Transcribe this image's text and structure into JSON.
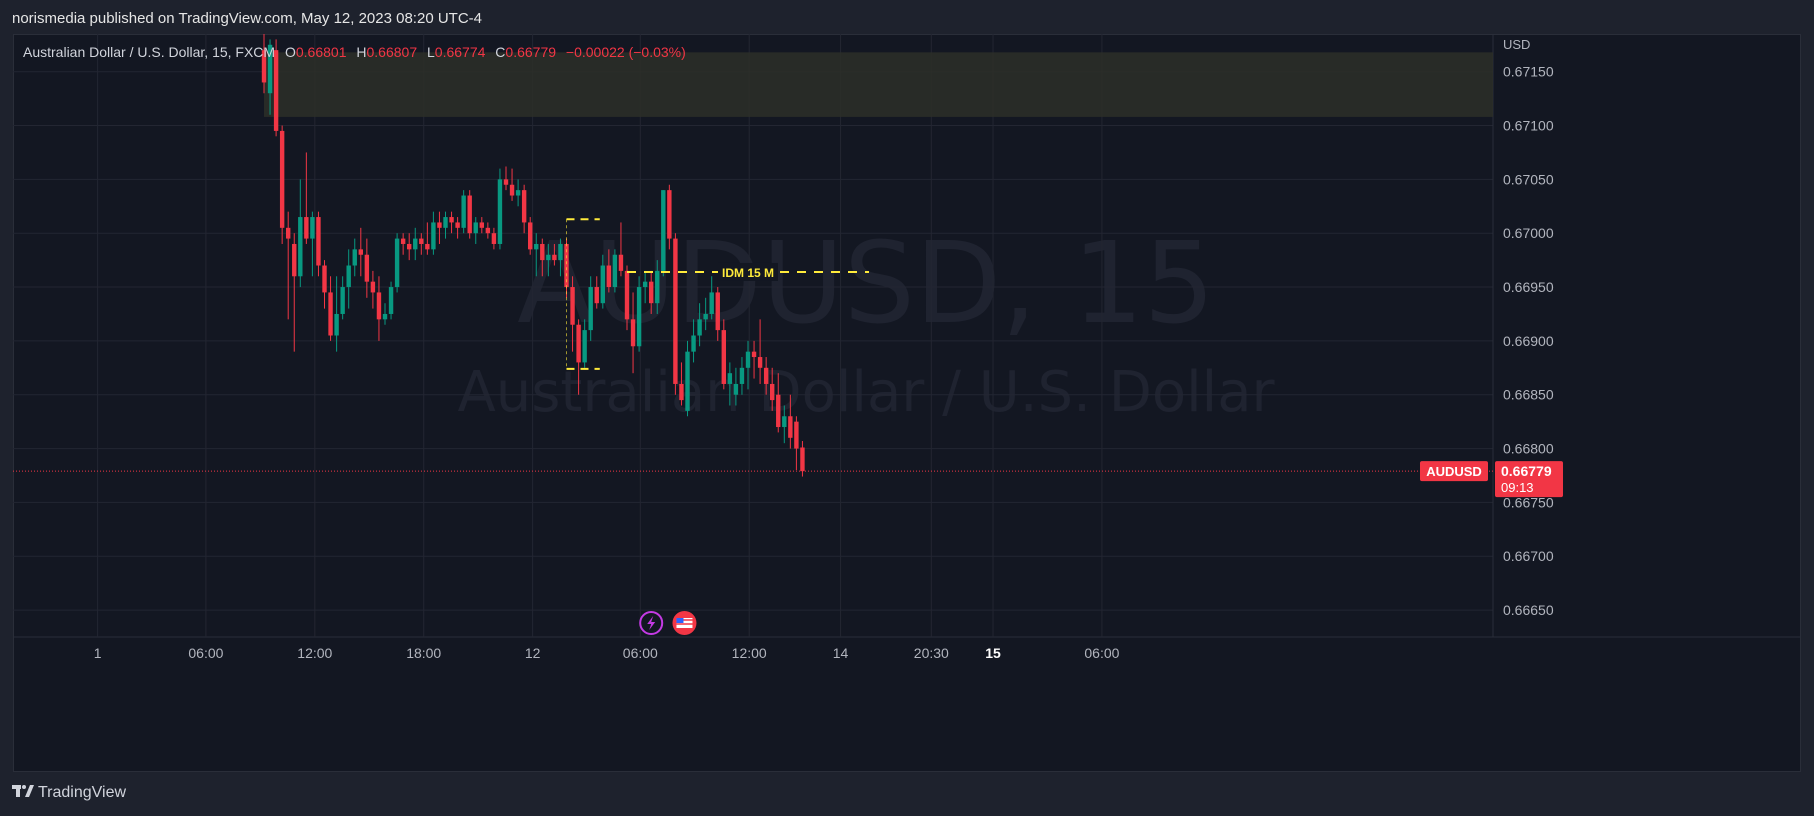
{
  "header": {
    "publisher_line": "norismedia published on TradingView.com, May 12, 2023 08:20 UTC-4"
  },
  "legend": {
    "symbol": "Australian Dollar / U.S. Dollar, 15, FXCM",
    "open_label": "O",
    "open": "0.66801",
    "high_label": "H",
    "high": "0.66807",
    "low_label": "L",
    "low": "0.66774",
    "close_label": "C",
    "close": "0.66779",
    "change": "−0.00022 (−0.03%)"
  },
  "watermark": {
    "line1": "AUDUSD, 15",
    "line2": "Australian Dollar / U.S. Dollar"
  },
  "footer": {
    "brand": "TradingView"
  },
  "colors": {
    "up": "#089981",
    "down": "#f23645",
    "background": "#131722",
    "grid": "#232632",
    "annotation": "#ffeb3b",
    "zone": "#2d2f28"
  },
  "icons": [
    "tradingview-logo-icon",
    "lightning-event-icon",
    "us-flag-event-icon"
  ],
  "chart_data": {
    "type": "candlestick",
    "symbol": "AUDUSD",
    "currency_label": "USD",
    "ylim": [
      0.66625,
      0.67185
    ],
    "y_ticks": [
      "0.67150",
      "0.67100",
      "0.67050",
      "0.67000",
      "0.66950",
      "0.66900",
      "0.66850",
      "0.66800",
      "0.66750",
      "0.66700",
      "0.66650"
    ],
    "x_ticks": [
      {
        "label": "1",
        "index": -27.5
      },
      {
        "label": "06:00",
        "index": -9.6
      },
      {
        "label": "12:00",
        "index": 8.4
      },
      {
        "label": "18:00",
        "index": 26.4
      },
      {
        "label": "12",
        "index": 44.4
      },
      {
        "label": "06:00",
        "index": 62.2
      },
      {
        "label": "12:00",
        "index": 80.2
      },
      {
        "label": "14",
        "index": 95.3
      },
      {
        "label": "20:30",
        "index": 110.3
      },
      {
        "label": "15",
        "index": 120.5,
        "bold": true
      },
      {
        "label": "06:00",
        "index": 138.5
      }
    ],
    "last_price": {
      "symbol": "AUDUSD",
      "price": "0.66779",
      "countdown": "09:13"
    },
    "annotations": [
      {
        "type": "hline_label",
        "text": "IDM 15 M",
        "y": 0.66964,
        "x_start": 60,
        "x_end": 100
      },
      {
        "type": "dashed_box",
        "x_start": 50,
        "x_end": 55.5,
        "y_top": 0.67013,
        "y_bottom": 0.66874
      },
      {
        "type": "zone",
        "y_top": 0.67168,
        "y_bottom": 0.67108,
        "x_start": 0
      }
    ],
    "event_icons": [
      {
        "icon": "lightning-event-icon",
        "index": 64
      },
      {
        "icon": "us-flag-event-icon",
        "index": 69.5
      }
    ],
    "candles": [
      {
        "o": 0.6717,
        "h": 0.67185,
        "l": 0.6713,
        "c": 0.6714
      },
      {
        "o": 0.6713,
        "h": 0.6718,
        "l": 0.6711,
        "c": 0.67175
      },
      {
        "o": 0.6717,
        "h": 0.6718,
        "l": 0.6709,
        "c": 0.67095
      },
      {
        "o": 0.67095,
        "h": 0.671,
        "l": 0.6699,
        "c": 0.67005
      },
      {
        "o": 0.67005,
        "h": 0.6702,
        "l": 0.6692,
        "c": 0.66995
      },
      {
        "o": 0.6699,
        "h": 0.67,
        "l": 0.6689,
        "c": 0.6696
      },
      {
        "o": 0.6696,
        "h": 0.6705,
        "l": 0.6695,
        "c": 0.67015
      },
      {
        "o": 0.67015,
        "h": 0.67075,
        "l": 0.6699,
        "c": 0.66995
      },
      {
        "o": 0.66995,
        "h": 0.6702,
        "l": 0.6696,
        "c": 0.67015
      },
      {
        "o": 0.67015,
        "h": 0.6702,
        "l": 0.6696,
        "c": 0.6697
      },
      {
        "o": 0.6697,
        "h": 0.66975,
        "l": 0.6693,
        "c": 0.66945
      },
      {
        "o": 0.66945,
        "h": 0.6696,
        "l": 0.669,
        "c": 0.66905
      },
      {
        "o": 0.66905,
        "h": 0.6696,
        "l": 0.6689,
        "c": 0.66925
      },
      {
        "o": 0.66925,
        "h": 0.6696,
        "l": 0.6692,
        "c": 0.6695
      },
      {
        "o": 0.6695,
        "h": 0.66985,
        "l": 0.6693,
        "c": 0.6697
      },
      {
        "o": 0.6697,
        "h": 0.66995,
        "l": 0.6696,
        "c": 0.66985
      },
      {
        "o": 0.66985,
        "h": 0.67005,
        "l": 0.6696,
        "c": 0.6698
      },
      {
        "o": 0.6698,
        "h": 0.66995,
        "l": 0.6694,
        "c": 0.66955
      },
      {
        "o": 0.66955,
        "h": 0.66965,
        "l": 0.6693,
        "c": 0.66945
      },
      {
        "o": 0.66945,
        "h": 0.6696,
        "l": 0.669,
        "c": 0.6692
      },
      {
        "o": 0.6692,
        "h": 0.66935,
        "l": 0.66915,
        "c": 0.66925
      },
      {
        "o": 0.66925,
        "h": 0.66955,
        "l": 0.6692,
        "c": 0.6695
      },
      {
        "o": 0.6695,
        "h": 0.67,
        "l": 0.66945,
        "c": 0.66995
      },
      {
        "o": 0.66995,
        "h": 0.67,
        "l": 0.6698,
        "c": 0.6699
      },
      {
        "o": 0.6699,
        "h": 0.67,
        "l": 0.66975,
        "c": 0.66985
      },
      {
        "o": 0.66985,
        "h": 0.67005,
        "l": 0.66975,
        "c": 0.66995
      },
      {
        "o": 0.66995,
        "h": 0.67,
        "l": 0.6698,
        "c": 0.6699
      },
      {
        "o": 0.6699,
        "h": 0.6701,
        "l": 0.6698,
        "c": 0.66985
      },
      {
        "o": 0.66985,
        "h": 0.6702,
        "l": 0.6698,
        "c": 0.6701
      },
      {
        "o": 0.6701,
        "h": 0.6702,
        "l": 0.6699,
        "c": 0.67005
      },
      {
        "o": 0.67005,
        "h": 0.6702,
        "l": 0.66995,
        "c": 0.67015
      },
      {
        "o": 0.67015,
        "h": 0.6702,
        "l": 0.67,
        "c": 0.6701
      },
      {
        "o": 0.6701,
        "h": 0.67015,
        "l": 0.66995,
        "c": 0.67005
      },
      {
        "o": 0.67005,
        "h": 0.6704,
        "l": 0.67,
        "c": 0.67035
      },
      {
        "o": 0.67035,
        "h": 0.6704,
        "l": 0.66995,
        "c": 0.67
      },
      {
        "o": 0.67,
        "h": 0.67015,
        "l": 0.6699,
        "c": 0.6701
      },
      {
        "o": 0.6701,
        "h": 0.67015,
        "l": 0.67,
        "c": 0.67005
      },
      {
        "o": 0.67005,
        "h": 0.6701,
        "l": 0.66995,
        "c": 0.67
      },
      {
        "o": 0.67,
        "h": 0.67005,
        "l": 0.66985,
        "c": 0.6699
      },
      {
        "o": 0.6699,
        "h": 0.6706,
        "l": 0.66985,
        "c": 0.6705
      },
      {
        "o": 0.6705,
        "h": 0.67062,
        "l": 0.6704,
        "c": 0.67045
      },
      {
        "o": 0.67045,
        "h": 0.6706,
        "l": 0.6703,
        "c": 0.67035
      },
      {
        "o": 0.67035,
        "h": 0.6705,
        "l": 0.67025,
        "c": 0.6704
      },
      {
        "o": 0.6704,
        "h": 0.67045,
        "l": 0.67,
        "c": 0.6701
      },
      {
        "o": 0.6701,
        "h": 0.67015,
        "l": 0.6698,
        "c": 0.66985
      },
      {
        "o": 0.66985,
        "h": 0.67,
        "l": 0.6696,
        "c": 0.6699
      },
      {
        "o": 0.6699,
        "h": 0.66995,
        "l": 0.6696,
        "c": 0.66975
      },
      {
        "o": 0.66975,
        "h": 0.6699,
        "l": 0.6696,
        "c": 0.6698
      },
      {
        "o": 0.6698,
        "h": 0.6699,
        "l": 0.6697,
        "c": 0.66975
      },
      {
        "o": 0.66975,
        "h": 0.66995,
        "l": 0.6696,
        "c": 0.6699
      },
      {
        "o": 0.6699,
        "h": 0.66995,
        "l": 0.6694,
        "c": 0.6695
      },
      {
        "o": 0.6695,
        "h": 0.6696,
        "l": 0.6689,
        "c": 0.66915
      },
      {
        "o": 0.66915,
        "h": 0.6692,
        "l": 0.6685,
        "c": 0.6688
      },
      {
        "o": 0.6688,
        "h": 0.6692,
        "l": 0.66875,
        "c": 0.6691
      },
      {
        "o": 0.6691,
        "h": 0.6696,
        "l": 0.669,
        "c": 0.6695
      },
      {
        "o": 0.6695,
        "h": 0.6696,
        "l": 0.6693,
        "c": 0.66935
      },
      {
        "o": 0.66935,
        "h": 0.6698,
        "l": 0.6693,
        "c": 0.6697
      },
      {
        "o": 0.6697,
        "h": 0.66985,
        "l": 0.66945,
        "c": 0.6695
      },
      {
        "o": 0.6695,
        "h": 0.66985,
        "l": 0.66945,
        "c": 0.6698
      },
      {
        "o": 0.6698,
        "h": 0.6701,
        "l": 0.6696,
        "c": 0.66965
      },
      {
        "o": 0.66965,
        "h": 0.6697,
        "l": 0.6691,
        "c": 0.6692
      },
      {
        "o": 0.6692,
        "h": 0.66945,
        "l": 0.6687,
        "c": 0.66895
      },
      {
        "o": 0.66895,
        "h": 0.6696,
        "l": 0.6689,
        "c": 0.6695
      },
      {
        "o": 0.6695,
        "h": 0.66965,
        "l": 0.66935,
        "c": 0.66955
      },
      {
        "o": 0.66955,
        "h": 0.66965,
        "l": 0.66925,
        "c": 0.66935
      },
      {
        "o": 0.66935,
        "h": 0.66975,
        "l": 0.66925,
        "c": 0.66965
      },
      {
        "o": 0.66965,
        "h": 0.6704,
        "l": 0.6696,
        "c": 0.6704
      },
      {
        "o": 0.6704,
        "h": 0.67045,
        "l": 0.66985,
        "c": 0.66995
      },
      {
        "o": 0.66995,
        "h": 0.67,
        "l": 0.6685,
        "c": 0.6686
      },
      {
        "o": 0.6686,
        "h": 0.6688,
        "l": 0.6684,
        "c": 0.66845
      },
      {
        "o": 0.66835,
        "h": 0.669,
        "l": 0.6683,
        "c": 0.6689
      },
      {
        "o": 0.6689,
        "h": 0.6692,
        "l": 0.6688,
        "c": 0.66905
      },
      {
        "o": 0.66905,
        "h": 0.66935,
        "l": 0.66895,
        "c": 0.6692
      },
      {
        "o": 0.6692,
        "h": 0.6694,
        "l": 0.6691,
        "c": 0.66925
      },
      {
        "o": 0.66925,
        "h": 0.6696,
        "l": 0.6692,
        "c": 0.66945
      },
      {
        "o": 0.66945,
        "h": 0.6695,
        "l": 0.669,
        "c": 0.6691
      },
      {
        "o": 0.6691,
        "h": 0.6692,
        "l": 0.66855,
        "c": 0.6686
      },
      {
        "o": 0.6686,
        "h": 0.6688,
        "l": 0.6684,
        "c": 0.6687
      },
      {
        "o": 0.6685,
        "h": 0.66875,
        "l": 0.6684,
        "c": 0.6686
      },
      {
        "o": 0.6686,
        "h": 0.66885,
        "l": 0.6685,
        "c": 0.66875
      },
      {
        "o": 0.66875,
        "h": 0.669,
        "l": 0.66855,
        "c": 0.6689
      },
      {
        "o": 0.6689,
        "h": 0.669,
        "l": 0.66865,
        "c": 0.66885
      },
      {
        "o": 0.66885,
        "h": 0.6692,
        "l": 0.6686,
        "c": 0.66875
      },
      {
        "o": 0.66875,
        "h": 0.66885,
        "l": 0.6685,
        "c": 0.6686
      },
      {
        "o": 0.6686,
        "h": 0.66875,
        "l": 0.66835,
        "c": 0.66845
      },
      {
        "o": 0.6685,
        "h": 0.6687,
        "l": 0.66815,
        "c": 0.6682
      },
      {
        "o": 0.6682,
        "h": 0.6684,
        "l": 0.66805,
        "c": 0.6683
      },
      {
        "o": 0.6683,
        "h": 0.6685,
        "l": 0.668,
        "c": 0.6681
      },
      {
        "o": 0.66825,
        "h": 0.6683,
        "l": 0.6678,
        "c": 0.668
      },
      {
        "o": 0.66801,
        "h": 0.66807,
        "l": 0.66774,
        "c": 0.66779
      }
    ]
  }
}
